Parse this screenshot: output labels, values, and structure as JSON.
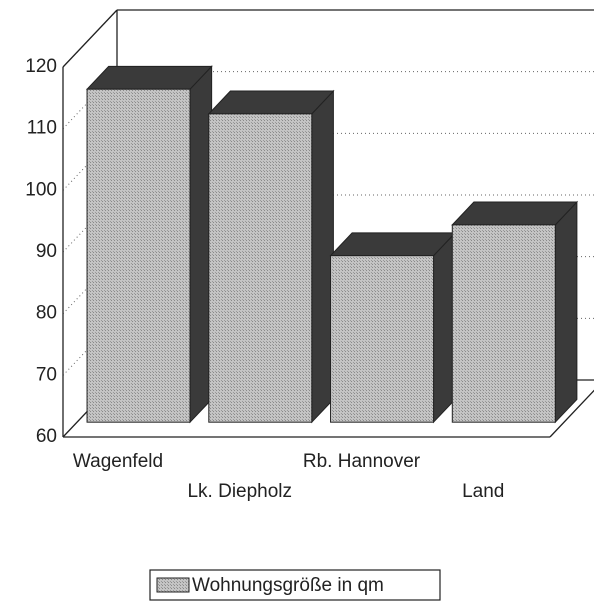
{
  "chart_data": {
    "type": "bar3d",
    "categories": [
      "Wagenfeld",
      "Lk. Diepholz",
      "Rb. Hannover",
      "Land"
    ],
    "series": [
      {
        "name": "Wohnungsgröße in qm",
        "color": "#b9b9b9",
        "values": [
          114,
          110,
          87,
          92
        ]
      }
    ],
    "ylim": [
      60,
      120
    ],
    "yticks": [
      60,
      70,
      80,
      90,
      100,
      110,
      120
    ],
    "grid": true,
    "legend": "bottom"
  }
}
